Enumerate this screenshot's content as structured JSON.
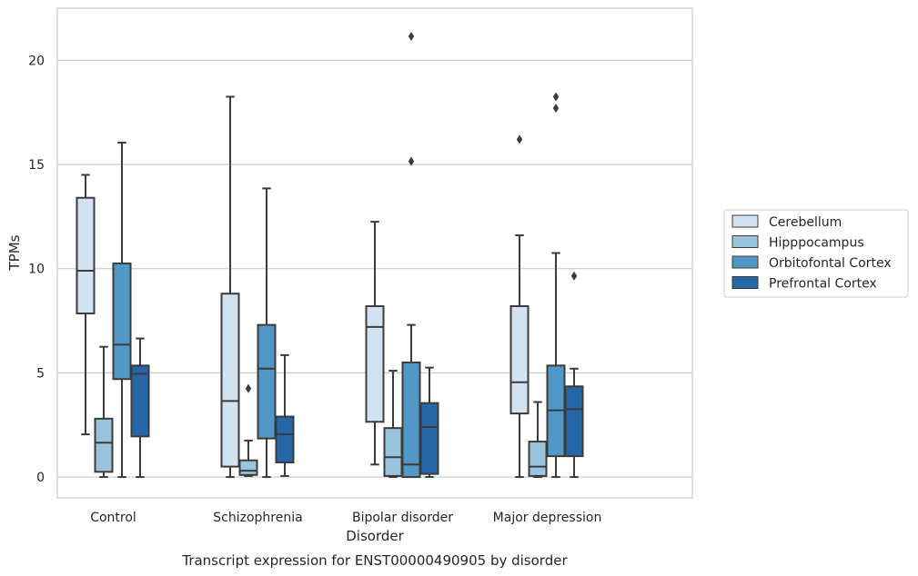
{
  "caption": "Transcript expression for ENST00000490905 by disorder",
  "chart_data": {
    "type": "box",
    "xlabel": "Disorder",
    "ylabel": "TPMs",
    "ylim": [
      -1,
      22.5
    ],
    "yticks": [
      0,
      5,
      10,
      15,
      20
    ],
    "grid": "horizontal",
    "legend_position": "right",
    "categories": [
      "Control",
      "Schizophrenia",
      "Bipolar disorder",
      "Major depression"
    ],
    "series": [
      {
        "name": "Cerebellum",
        "color": "#d2e2f1",
        "boxes": [
          {
            "whisker_low": 2.05,
            "q1": 7.85,
            "median": 9.9,
            "q3": 13.4,
            "whisker_high": 14.5,
            "outliers": []
          },
          {
            "whisker_low": 0.0,
            "q1": 0.5,
            "median": 3.65,
            "q3": 8.8,
            "whisker_high": 18.25,
            "outliers": []
          },
          {
            "whisker_low": 0.6,
            "q1": 2.65,
            "median": 7.2,
            "q3": 8.2,
            "whisker_high": 12.25,
            "outliers": []
          },
          {
            "whisker_low": 0.0,
            "q1": 3.05,
            "median": 4.55,
            "q3": 8.2,
            "whisker_high": 11.6,
            "outliers": [
              16.2
            ]
          }
        ]
      },
      {
        "name": "Hipppocampus",
        "color": "#9ac3de",
        "boxes": [
          {
            "whisker_low": 0.0,
            "q1": 0.25,
            "median": 1.65,
            "q3": 2.8,
            "whisker_high": 6.25,
            "outliers": []
          },
          {
            "whisker_low": 0.05,
            "q1": 0.1,
            "median": 0.3,
            "q3": 0.8,
            "whisker_high": 1.75,
            "outliers": [
              4.25
            ]
          },
          {
            "whisker_low": 0.0,
            "q1": 0.05,
            "median": 0.95,
            "q3": 2.35,
            "whisker_high": 5.1,
            "outliers": []
          },
          {
            "whisker_low": 0.0,
            "q1": 0.05,
            "median": 0.5,
            "q3": 1.7,
            "whisker_high": 3.6,
            "outliers": []
          }
        ]
      },
      {
        "name": "Orbitofontal Cortex",
        "color": "#5198c6",
        "boxes": [
          {
            "whisker_low": 0.0,
            "q1": 4.7,
            "median": 6.35,
            "q3": 10.25,
            "whisker_high": 16.05,
            "outliers": []
          },
          {
            "whisker_low": 0.0,
            "q1": 1.85,
            "median": 5.2,
            "q3": 7.3,
            "whisker_high": 13.85,
            "outliers": []
          },
          {
            "whisker_low": 0.0,
            "q1": 0.0,
            "median": 0.6,
            "q3": 5.5,
            "whisker_high": 7.3,
            "outliers": [
              15.15,
              21.15
            ]
          },
          {
            "whisker_low": 0.0,
            "q1": 1.0,
            "median": 3.2,
            "q3": 5.35,
            "whisker_high": 10.75,
            "outliers": [
              17.7,
              18.25
            ]
          }
        ]
      },
      {
        "name": "Prefrontal Cortex",
        "color": "#2466a6",
        "boxes": [
          {
            "whisker_low": 0.0,
            "q1": 1.95,
            "median": 4.95,
            "q3": 5.35,
            "whisker_high": 6.65,
            "outliers": []
          },
          {
            "whisker_low": 0.05,
            "q1": 0.7,
            "median": 2.05,
            "q3": 2.9,
            "whisker_high": 5.85,
            "outliers": []
          },
          {
            "whisker_low": 0.0,
            "q1": 0.15,
            "median": 2.4,
            "q3": 3.55,
            "whisker_high": 5.25,
            "outliers": []
          },
          {
            "whisker_low": 0.0,
            "q1": 1.0,
            "median": 3.25,
            "q3": 4.35,
            "whisker_high": 5.2,
            "outliers": [
              9.65
            ]
          }
        ]
      }
    ]
  }
}
